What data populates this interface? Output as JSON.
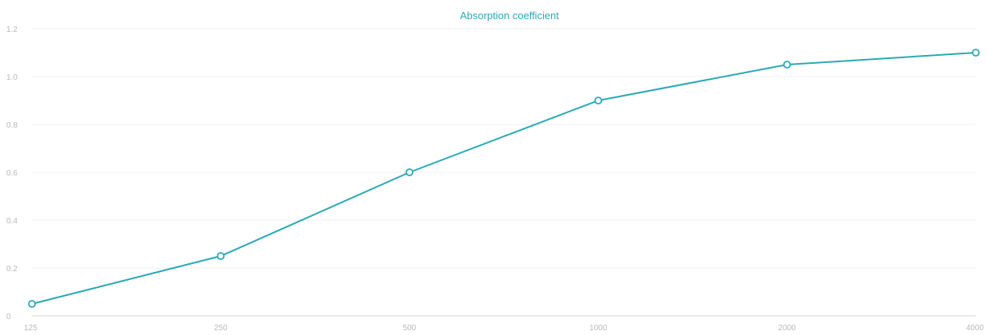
{
  "chart_data": {
    "type": "line",
    "title": "Absorption coefficient",
    "xlabel": "",
    "ylabel": "",
    "categories": [
      "125",
      "250",
      "500",
      "1000",
      "2000",
      "4000"
    ],
    "series": [
      {
        "values": [
          0.05,
          0.25,
          0.6,
          0.9,
          1.05,
          1.1
        ]
      }
    ],
    "ylim": [
      0,
      1.2
    ],
    "y_ticks": [
      {
        "value": 0,
        "label": "0"
      },
      {
        "value": 0.2,
        "label": "0.2"
      },
      {
        "value": 0.4,
        "label": "0.4"
      },
      {
        "value": 0.6,
        "label": "0.6"
      },
      {
        "value": 0.8,
        "label": "0.8"
      },
      {
        "value": 1.0,
        "label": "1.0"
      },
      {
        "value": 1.2,
        "label": "1.2"
      }
    ],
    "grid": true,
    "legend": "none",
    "colors": {
      "line": "#2aa9b6",
      "title": "#2aa9b6"
    }
  }
}
